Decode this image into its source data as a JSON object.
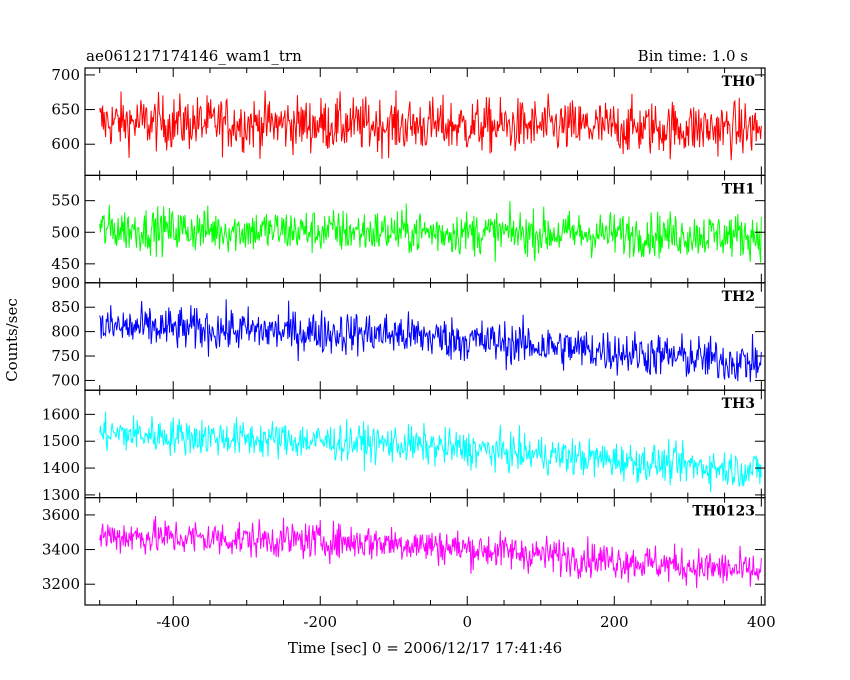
{
  "chart_data": {
    "type": "line",
    "title": "ae061217174146_wam1_trn",
    "subtitle": "Bin time: 1.0 s",
    "xlabel": "Time [sec] 0 = 2006/12/17 17:41:46",
    "ylabel": "Counts/sec",
    "xlim": [
      -520,
      405
    ],
    "x_start": -500,
    "x_end": 400,
    "x_ticks": [
      -400,
      -200,
      0,
      200,
      400
    ],
    "series": [
      {
        "name": "TH0",
        "color": "#ff0000",
        "ylim": [
          555,
          710
        ],
        "y_ticks": [
          600,
          650,
          700
        ],
        "trend": [
          [
            -500,
            632
          ],
          [
            400,
            622
          ]
        ],
        "noise": 28,
        "spike_max": 710,
        "spike_min": 555
      },
      {
        "name": "TH1",
        "color": "#00ff00",
        "ylim": [
          420,
          590
        ],
        "y_ticks": [
          450,
          500,
          550
        ],
        "trend": [
          [
            -500,
            505
          ],
          [
            400,
            495
          ]
        ],
        "noise": 25,
        "spike_max": 590,
        "spike_min": 420
      },
      {
        "name": "TH2",
        "color": "#0000ff",
        "ylim": [
          680,
          900
        ],
        "y_ticks": [
          700,
          750,
          800,
          850,
          900
        ],
        "trend": [
          [
            -500,
            810
          ],
          [
            -100,
            795
          ],
          [
            400,
            735
          ]
        ],
        "noise": 32,
        "spike_max": 895,
        "spike_min": 680
      },
      {
        "name": "TH3",
        "color": "#00ffff",
        "ylim": [
          1290,
          1690
        ],
        "y_ticks": [
          1300,
          1400,
          1500,
          1600
        ],
        "trend": [
          [
            -500,
            1530
          ],
          [
            -100,
            1490
          ],
          [
            400,
            1390
          ]
        ],
        "noise": 50,
        "spike_max": 1690,
        "spike_min": 1290
      },
      {
        "name": "TH0123",
        "color": "#ff00ff",
        "ylim": [
          3080,
          3700
        ],
        "y_ticks": [
          3200,
          3400,
          3600
        ],
        "trend": [
          [
            -500,
            3480
          ],
          [
            -100,
            3440
          ],
          [
            400,
            3270
          ]
        ],
        "noise": 75,
        "spike_max": 3700,
        "spike_min": 3090
      }
    ]
  }
}
